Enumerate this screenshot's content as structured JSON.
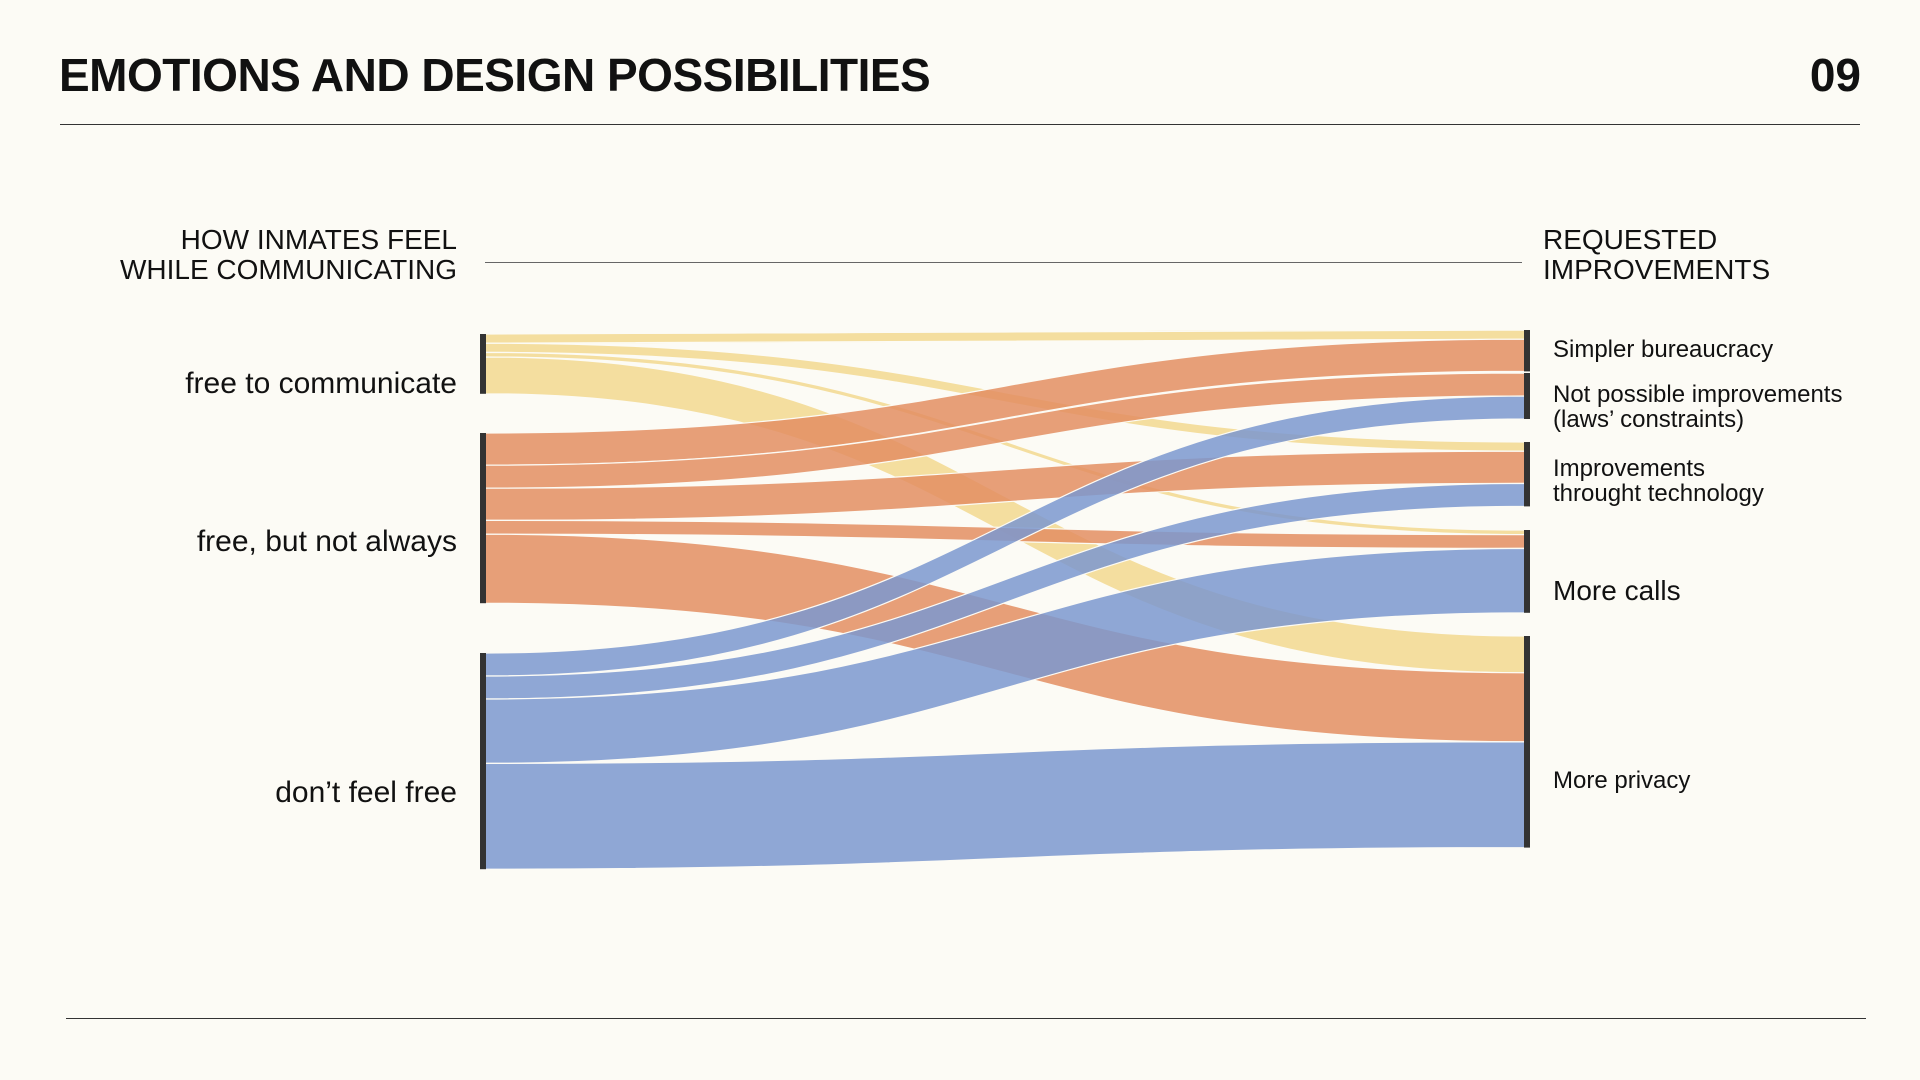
{
  "header": {
    "title": "EMOTIONS AND DESIGN POSSIBILITIES",
    "page_number": "09"
  },
  "diagram": {
    "left_heading": [
      "HOW INMATES FEEL",
      "WHILE COMMUNICATING"
    ],
    "right_heading": [
      "REQUESTED",
      "IMPROVEMENTS"
    ],
    "colors": {
      "free_to_communicate": "#f2d88f",
      "free_but_not_always": "#e38e62",
      "dont_feel_free": "#7b98cf",
      "node_bar": "#333333"
    }
  },
  "chart_data": {
    "type": "sankey",
    "sources": [
      {
        "id": "free",
        "label": "free to communicate"
      },
      {
        "id": "partial",
        "label": "free, but not always"
      },
      {
        "id": "notfree",
        "label": "don’t feel free"
      }
    ],
    "targets": [
      {
        "id": "bureau",
        "label": [
          "Simpler bureaucracy"
        ]
      },
      {
        "id": "laws",
        "label": [
          "Not possible improvements",
          "(laws’ constraints)"
        ]
      },
      {
        "id": "tech",
        "label": [
          "Improvements",
          "throught technology"
        ]
      },
      {
        "id": "calls",
        "label": [
          "More calls"
        ]
      },
      {
        "id": "privacy",
        "label": [
          "More privacy"
        ]
      }
    ],
    "links": [
      {
        "source": "free",
        "target": "bureau",
        "value": 1
      },
      {
        "source": "free",
        "target": "tech",
        "value": 1
      },
      {
        "source": "free",
        "target": "calls",
        "value": 0.5
      },
      {
        "source": "free",
        "target": "privacy",
        "value": 4
      },
      {
        "source": "partial",
        "target": "bureau",
        "value": 3.5
      },
      {
        "source": "partial",
        "target": "laws",
        "value": 2.5
      },
      {
        "source": "partial",
        "target": "tech",
        "value": 3.5
      },
      {
        "source": "partial",
        "target": "calls",
        "value": 1.5
      },
      {
        "source": "partial",
        "target": "privacy",
        "value": 7.5
      },
      {
        "source": "notfree",
        "target": "laws",
        "value": 2.5
      },
      {
        "source": "notfree",
        "target": "tech",
        "value": 2.5
      },
      {
        "source": "notfree",
        "target": "calls",
        "value": 7
      },
      {
        "source": "notfree",
        "target": "privacy",
        "value": 11.5
      }
    ]
  }
}
